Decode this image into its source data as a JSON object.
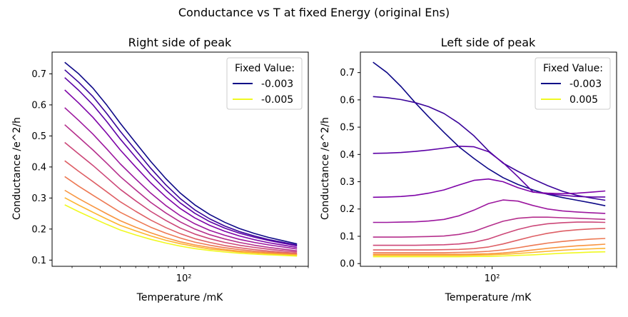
{
  "figure_title": "Conductance vs T at fixed Energy (original Ens)",
  "chart_data": [
    {
      "type": "line",
      "title": "Right side of peak",
      "xlabel": "Temperature /mK",
      "ylabel": "Conductance /e^2/h",
      "xscale": "log",
      "xlim": [
        15,
        600
      ],
      "ylim": [
        0.08,
        0.77
      ],
      "x_ticks": [
        {
          "value": 100,
          "label": "10²"
        }
      ],
      "y_ticks": [
        0.1,
        0.2,
        0.3,
        0.4,
        0.5,
        0.6,
        0.7
      ],
      "grid": false,
      "legend": {
        "title": "Fixed Value:",
        "position": "top-right",
        "entries": [
          {
            "label": "-0.003",
            "color": "#0d0887"
          },
          {
            "label": "-0.005",
            "color": "#f0f921"
          }
        ]
      },
      "x": [
        18,
        22,
        27,
        33,
        40,
        50,
        62,
        77,
        95,
        117,
        145,
        180,
        222,
        275,
        340,
        420,
        510
      ],
      "series": [
        {
          "color": "#0d0887",
          "values": [
            0.737,
            0.7,
            0.654,
            0.599,
            0.541,
            0.478,
            0.418,
            0.363,
            0.316,
            0.278,
            0.247,
            0.222,
            0.202,
            0.186,
            0.173,
            0.162,
            0.152
          ]
        },
        {
          "color": "#3a049a",
          "values": [
            0.713,
            0.673,
            0.627,
            0.572,
            0.515,
            0.454,
            0.396,
            0.343,
            0.298,
            0.262,
            0.233,
            0.21,
            0.192,
            0.178,
            0.166,
            0.157,
            0.148
          ]
        },
        {
          "color": "#5c01a6",
          "values": [
            0.688,
            0.647,
            0.6,
            0.546,
            0.49,
            0.431,
            0.376,
            0.326,
            0.284,
            0.251,
            0.224,
            0.203,
            0.187,
            0.174,
            0.163,
            0.154,
            0.146
          ]
        },
        {
          "color": "#7e03a8",
          "values": [
            0.648,
            0.606,
            0.56,
            0.508,
            0.455,
            0.4,
            0.349,
            0.304,
            0.266,
            0.236,
            0.212,
            0.193,
            0.178,
            0.166,
            0.156,
            0.148,
            0.141
          ]
        },
        {
          "color": "#9c179e",
          "values": [
            0.591,
            0.55,
            0.506,
            0.458,
            0.41,
            0.361,
            0.316,
            0.276,
            0.243,
            0.217,
            0.196,
            0.18,
            0.167,
            0.157,
            0.149,
            0.142,
            0.136
          ]
        },
        {
          "color": "#b52f8c",
          "values": [
            0.536,
            0.496,
            0.455,
            0.412,
            0.369,
            0.326,
            0.286,
            0.252,
            0.223,
            0.2,
            0.182,
            0.168,
            0.157,
            0.148,
            0.141,
            0.135,
            0.13
          ]
        },
        {
          "color": "#cc4778",
          "values": [
            0.479,
            0.442,
            0.405,
            0.366,
            0.328,
            0.291,
            0.257,
            0.228,
            0.203,
            0.184,
            0.169,
            0.157,
            0.148,
            0.141,
            0.135,
            0.13,
            0.126
          ]
        },
        {
          "color": "#de5f65",
          "values": [
            0.42,
            0.386,
            0.353,
            0.32,
            0.288,
            0.257,
            0.229,
            0.205,
            0.185,
            0.169,
            0.157,
            0.147,
            0.14,
            0.134,
            0.129,
            0.125,
            0.122
          ]
        },
        {
          "color": "#ed7953",
          "values": [
            0.369,
            0.338,
            0.309,
            0.281,
            0.254,
            0.229,
            0.206,
            0.187,
            0.171,
            0.158,
            0.148,
            0.14,
            0.134,
            0.129,
            0.125,
            0.122,
            0.119
          ]
        },
        {
          "color": "#f89540",
          "values": [
            0.325,
            0.298,
            0.273,
            0.249,
            0.227,
            0.206,
            0.188,
            0.172,
            0.159,
            0.149,
            0.141,
            0.134,
            0.129,
            0.125,
            0.122,
            0.119,
            0.117
          ]
        },
        {
          "color": "#fdb42f",
          "values": [
            0.301,
            0.277,
            0.254,
            0.232,
            0.212,
            0.194,
            0.178,
            0.164,
            0.153,
            0.144,
            0.136,
            0.131,
            0.126,
            0.123,
            0.12,
            0.118,
            0.116
          ]
        },
        {
          "color": "#f0f921",
          "values": [
            0.278,
            0.256,
            0.235,
            0.215,
            0.197,
            0.181,
            0.167,
            0.155,
            0.145,
            0.137,
            0.131,
            0.126,
            0.122,
            0.119,
            0.117,
            0.115,
            0.113
          ]
        }
      ]
    },
    {
      "type": "line",
      "title": "Left side of peak",
      "xlabel": "Temperature /mK",
      "ylabel": "Conductance /e^2/h",
      "xscale": "log",
      "xlim": [
        15,
        600
      ],
      "ylim": [
        -0.01,
        0.775
      ],
      "x_ticks": [
        {
          "value": 100,
          "label": "10²"
        }
      ],
      "y_ticks": [
        0.0,
        0.1,
        0.2,
        0.3,
        0.4,
        0.5,
        0.6,
        0.7
      ],
      "grid": false,
      "legend": {
        "title": "Fixed Value:",
        "position": "top-right",
        "entries": [
          {
            "label": "-0.003",
            "color": "#0d0887"
          },
          {
            "label": "0.005",
            "color": "#f0f921"
          }
        ]
      },
      "x": [
        18,
        22,
        27,
        33,
        40,
        50,
        62,
        77,
        95,
        117,
        145,
        180,
        222,
        275,
        340,
        420,
        510
      ],
      "series": [
        {
          "color": "#0d0887",
          "values": [
            0.738,
            0.7,
            0.648,
            0.59,
            0.538,
            0.481,
            0.428,
            0.385,
            0.347,
            0.315,
            0.29,
            0.27,
            0.254,
            0.242,
            0.232,
            0.222,
            0.212
          ]
        },
        {
          "color": "#3a049a",
          "values": [
            0.612,
            0.608,
            0.601,
            0.59,
            0.575,
            0.55,
            0.514,
            0.468,
            0.413,
            0.368,
            0.338,
            0.31,
            0.286,
            0.265,
            0.25,
            0.24,
            0.232
          ]
        },
        {
          "color": "#5c01a6",
          "values": [
            0.404,
            0.405,
            0.407,
            0.411,
            0.416,
            0.423,
            0.43,
            0.428,
            0.41,
            0.37,
            0.318,
            0.263,
            0.255,
            0.25,
            0.246,
            0.244,
            0.244
          ]
        },
        {
          "color": "#7e03a8",
          "values": [
            0.243,
            0.244,
            0.246,
            0.25,
            0.258,
            0.27,
            0.288,
            0.305,
            0.31,
            0.3,
            0.278,
            0.262,
            0.258,
            0.256,
            0.258,
            0.262,
            0.266
          ]
        },
        {
          "color": "#9c179e",
          "values": [
            0.151,
            0.151,
            0.152,
            0.153,
            0.156,
            0.162,
            0.175,
            0.196,
            0.22,
            0.233,
            0.229,
            0.213,
            0.2,
            0.193,
            0.189,
            0.186,
            0.184
          ]
        },
        {
          "color": "#b52f8c",
          "values": [
            0.097,
            0.097,
            0.097,
            0.098,
            0.099,
            0.101,
            0.107,
            0.118,
            0.137,
            0.155,
            0.166,
            0.17,
            0.17,
            0.168,
            0.166,
            0.164,
            0.162
          ]
        },
        {
          "color": "#cc4778",
          "values": [
            0.067,
            0.067,
            0.067,
            0.067,
            0.068,
            0.069,
            0.072,
            0.078,
            0.09,
            0.108,
            0.125,
            0.138,
            0.146,
            0.15,
            0.152,
            0.152,
            0.151
          ]
        },
        {
          "color": "#de5f65",
          "values": [
            0.05,
            0.05,
            0.05,
            0.05,
            0.05,
            0.051,
            0.052,
            0.055,
            0.061,
            0.072,
            0.086,
            0.1,
            0.111,
            0.119,
            0.124,
            0.127,
            0.129
          ]
        },
        {
          "color": "#ed7953",
          "values": [
            0.04,
            0.04,
            0.04,
            0.04,
            0.04,
            0.04,
            0.041,
            0.042,
            0.045,
            0.05,
            0.058,
            0.067,
            0.075,
            0.081,
            0.086,
            0.09,
            0.092
          ]
        },
        {
          "color": "#f89540",
          "values": [
            0.034,
            0.034,
            0.034,
            0.034,
            0.034,
            0.034,
            0.034,
            0.035,
            0.036,
            0.039,
            0.044,
            0.05,
            0.056,
            0.061,
            0.065,
            0.068,
            0.071
          ]
        },
        {
          "color": "#fdb42f",
          "values": [
            0.03,
            0.03,
            0.03,
            0.03,
            0.03,
            0.03,
            0.03,
            0.031,
            0.032,
            0.034,
            0.037,
            0.041,
            0.045,
            0.049,
            0.052,
            0.054,
            0.056
          ]
        },
        {
          "color": "#f0f921",
          "values": [
            0.025,
            0.025,
            0.025,
            0.025,
            0.025,
            0.025,
            0.025,
            0.026,
            0.026,
            0.028,
            0.03,
            0.032,
            0.035,
            0.038,
            0.04,
            0.042,
            0.043
          ]
        }
      ]
    }
  ]
}
